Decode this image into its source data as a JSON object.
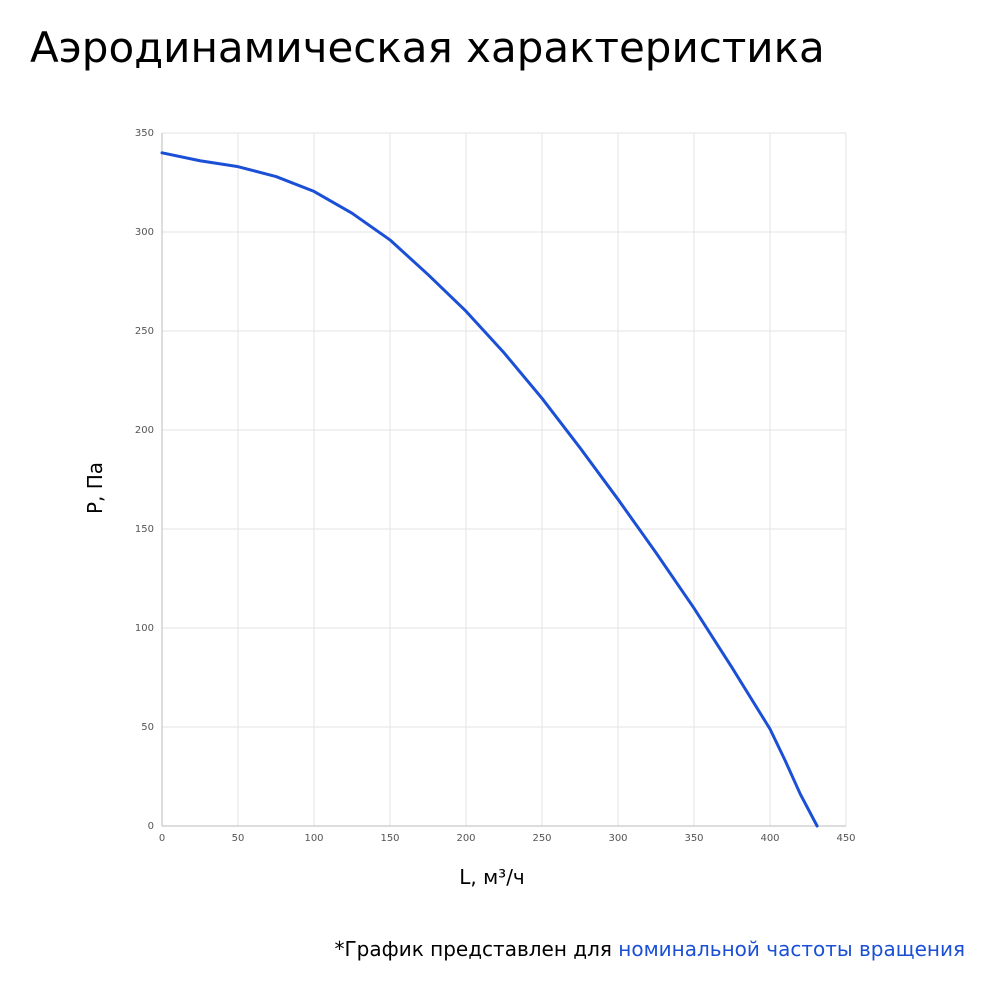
{
  "chart_data": {
    "type": "line",
    "title": "Аэродинамическая характеристика",
    "x_label": "L, м³/ч",
    "y_label": "P, Па",
    "x": [
      0,
      25,
      50,
      75,
      100,
      125,
      150,
      175,
      200,
      225,
      250,
      275,
      300,
      325,
      350,
      375,
      400,
      410,
      420,
      431
    ],
    "series": [
      {
        "color": "#1a4fd6",
        "values": [
          340,
          336,
          333,
          328,
          320.5,
          309.5,
          296,
          278.5,
          260,
          239,
          216,
          191,
          165,
          138,
          110,
          80,
          49,
          33,
          16,
          0
        ]
      }
    ],
    "xlim": [
      0,
      450
    ],
    "xticks": [
      0,
      50,
      100,
      150,
      200,
      250,
      300,
      350,
      400,
      450
    ],
    "ylim": [
      0,
      350
    ],
    "yticks": [
      0,
      50,
      100,
      150,
      200,
      250,
      300,
      350
    ],
    "grid": true,
    "footnote": {
      "text": "*График представлен для ",
      "highlight": "номинальной частоты вращения"
    }
  }
}
